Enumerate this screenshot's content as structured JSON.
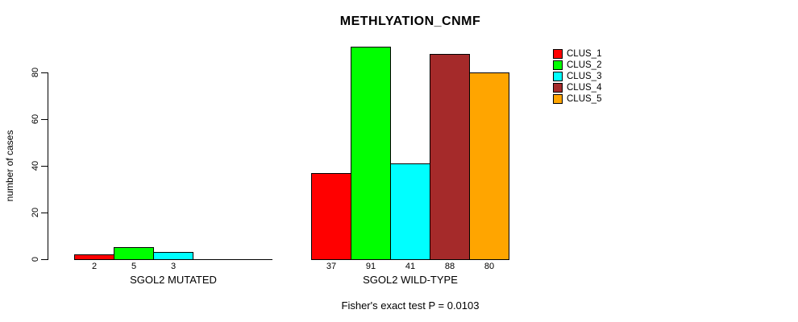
{
  "chart_data": {
    "type": "bar",
    "title": "METHLYATION_CNMF",
    "xlabel": "",
    "ylabel": "number of cases",
    "ylim": [
      0,
      91
    ],
    "yticks": [
      0,
      20,
      40,
      60,
      80
    ],
    "grid": false,
    "legend_position": "right-outside",
    "series": [
      {
        "name": "CLUS_1",
        "color": "#FF0000"
      },
      {
        "name": "CLUS_2",
        "color": "#00FF00"
      },
      {
        "name": "CLUS_3",
        "color": "#00FFFF"
      },
      {
        "name": "CLUS_4",
        "color": "#A52A2A"
      },
      {
        "name": "CLUS_5",
        "color": "#FFA500"
      }
    ],
    "groups": [
      {
        "label": "SGOL2 MUTATED",
        "values": [
          2,
          5,
          3,
          0,
          0
        ],
        "bar_labels": [
          "2",
          "5",
          "3",
          "",
          ""
        ]
      },
      {
        "label": "SGOL2 WILD-TYPE",
        "values": [
          37,
          91,
          41,
          88,
          80
        ],
        "bar_labels": [
          "37",
          "91",
          "41",
          "88",
          "80"
        ]
      }
    ],
    "annotation": "Fisher's exact test P = 0.0103"
  }
}
